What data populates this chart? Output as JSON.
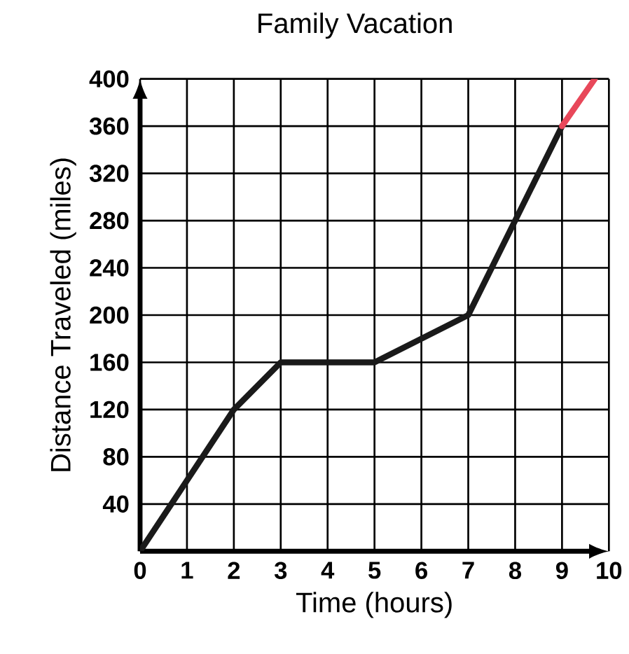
{
  "chart_data": {
    "type": "line",
    "title": "Family Vacation",
    "xlabel": "Time (hours)",
    "ylabel": "Distance Traveled (miles)",
    "series": [
      {
        "color": "#1a1a1a",
        "x": [
          0,
          2,
          3,
          5,
          7,
          9
        ],
        "values": [
          0,
          120,
          160,
          160,
          200,
          360
        ]
      },
      {
        "color": "#e8485a",
        "x": [
          9,
          9.7
        ],
        "values": [
          360,
          400
        ]
      }
    ],
    "xlim": [
      0,
      10
    ],
    "ylim": [
      0,
      400
    ],
    "xticks": [
      0,
      1,
      2,
      3,
      4,
      5,
      6,
      7,
      8,
      9,
      10
    ],
    "yticks": [
      40,
      80,
      120,
      160,
      200,
      240,
      280,
      320,
      360,
      400
    ],
    "grid": true,
    "marker": "none",
    "line_style": "solid"
  }
}
